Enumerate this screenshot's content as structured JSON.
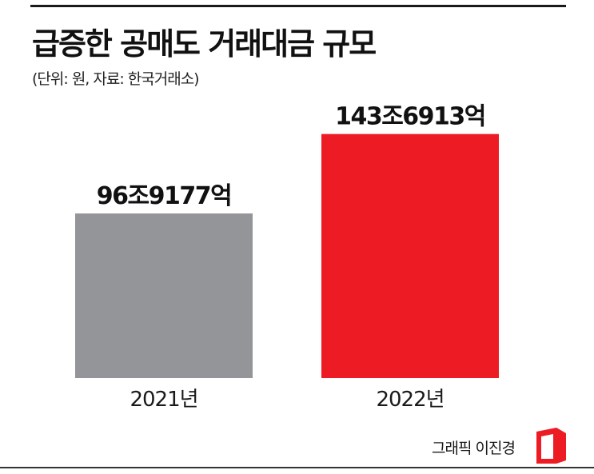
{
  "header": {
    "title": "급증한 공매도 거래대금 규모",
    "subtitle": "(단위: 원, 자료: 한국거래소)"
  },
  "chart_data": {
    "type": "bar",
    "categories": [
      "2021년",
      "2022년"
    ],
    "values": [
      969177,
      1436913
    ],
    "value_labels": [
      "96조9177억",
      "143조6913억"
    ],
    "colors": [
      "#939598",
      "#ed1c24"
    ],
    "ylim": [
      0,
      1600000
    ],
    "grid": false,
    "legend": "none"
  },
  "footer": {
    "credit": "그래픽 이진경"
  },
  "colors": {
    "brand": "#ed1c24"
  }
}
